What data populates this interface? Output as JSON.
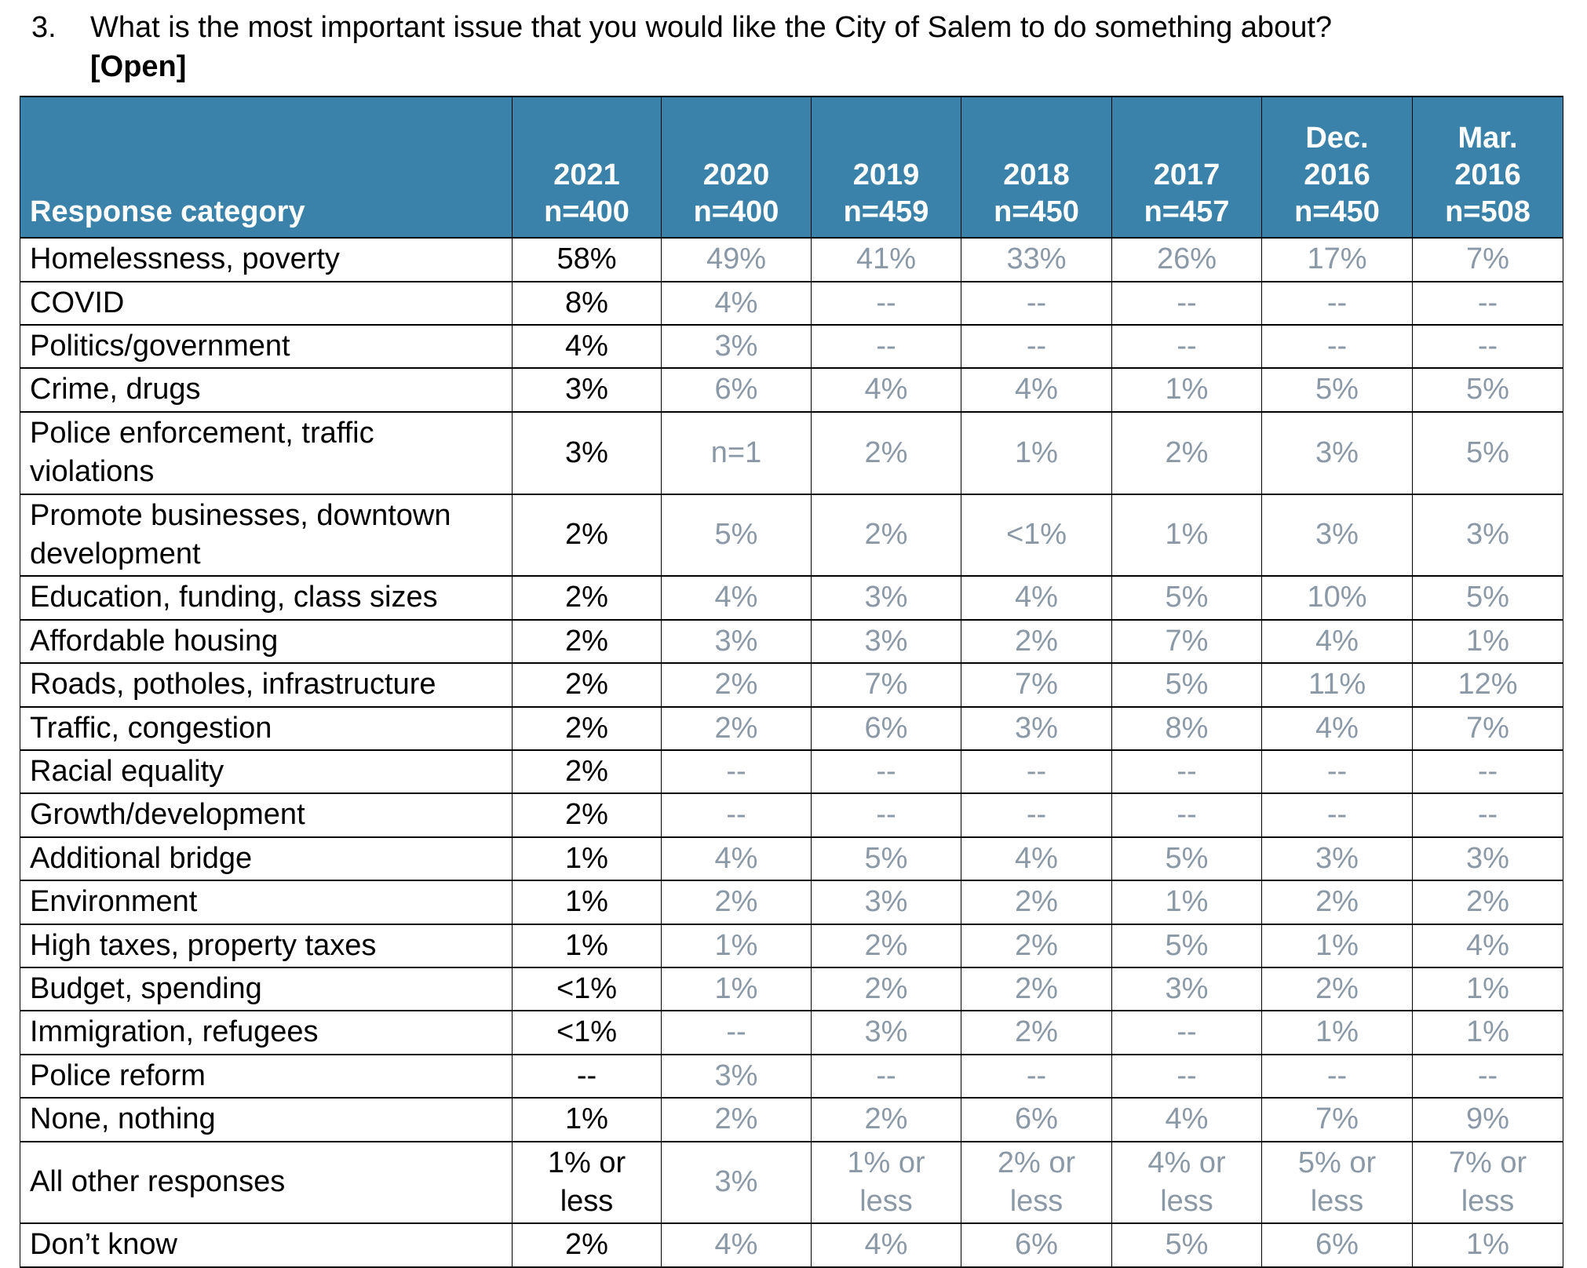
{
  "question": {
    "number": "3.",
    "text": "What is the most important issue that you would like the City of Salem to do something about?",
    "tag": "[Open]"
  },
  "colors": {
    "header_background": "#3a82a9",
    "header_text": "#ffffff",
    "current_year_text": "#000000",
    "past_year_text": "#8b99a6"
  },
  "table": {
    "category_header": "Response category",
    "columns": [
      {
        "key": "2021",
        "label": "2021\nn=400"
      },
      {
        "key": "2020",
        "label": "2020\nn=400"
      },
      {
        "key": "2019",
        "label": "2019\nn=459"
      },
      {
        "key": "2018",
        "label": "2018\nn=450"
      },
      {
        "key": "2017",
        "label": "2017\nn=457"
      },
      {
        "key": "dec-2016",
        "label": "Dec.\n2016\nn=450"
      },
      {
        "key": "mar-2016",
        "label": "Mar.\n2016\nn=508"
      }
    ],
    "rows": [
      {
        "category": "Homelessness, poverty",
        "values": [
          "58%",
          "49%",
          "41%",
          "33%",
          "26%",
          "17%",
          "7%"
        ]
      },
      {
        "category": "COVID",
        "values": [
          "8%",
          "4%",
          "--",
          "--",
          "--",
          "--",
          "--"
        ]
      },
      {
        "category": "Politics/government",
        "values": [
          "4%",
          "3%",
          "--",
          "--",
          "--",
          "--",
          "--"
        ]
      },
      {
        "category": "Crime, drugs",
        "values": [
          "3%",
          "6%",
          "4%",
          "4%",
          "1%",
          "5%",
          "5%"
        ]
      },
      {
        "category": "Police enforcement, traffic violations",
        "values": [
          "3%",
          "n=1",
          "2%",
          "1%",
          "2%",
          "3%",
          "5%"
        ]
      },
      {
        "category": "Promote businesses, downtown development",
        "values": [
          "2%",
          "5%",
          "2%",
          "<1%",
          "1%",
          "3%",
          "3%"
        ]
      },
      {
        "category": "Education, funding, class sizes",
        "values": [
          "2%",
          "4%",
          "3%",
          "4%",
          "5%",
          "10%",
          "5%"
        ]
      },
      {
        "category": "Affordable housing",
        "values": [
          "2%",
          "3%",
          "3%",
          "2%",
          "7%",
          "4%",
          "1%"
        ]
      },
      {
        "category": "Roads, potholes, infrastructure",
        "values": [
          "2%",
          "2%",
          "7%",
          "7%",
          "5%",
          "11%",
          "12%"
        ]
      },
      {
        "category": "Traffic, congestion",
        "values": [
          "2%",
          "2%",
          "6%",
          "3%",
          "8%",
          "4%",
          "7%"
        ]
      },
      {
        "category": "Racial equality",
        "values": [
          "2%",
          "--",
          "--",
          "--",
          "--",
          "--",
          "--"
        ]
      },
      {
        "category": "Growth/development",
        "values": [
          "2%",
          "--",
          "--",
          "--",
          "--",
          "--",
          "--"
        ]
      },
      {
        "category": "Additional bridge",
        "values": [
          "1%",
          "4%",
          "5%",
          "4%",
          "5%",
          "3%",
          "3%"
        ]
      },
      {
        "category": "Environment",
        "values": [
          "1%",
          "2%",
          "3%",
          "2%",
          "1%",
          "2%",
          "2%"
        ]
      },
      {
        "category": "High taxes, property taxes",
        "values": [
          "1%",
          "1%",
          "2%",
          "2%",
          "5%",
          "1%",
          "4%"
        ]
      },
      {
        "category": "Budget, spending",
        "values": [
          "<1%",
          "1%",
          "2%",
          "2%",
          "3%",
          "2%",
          "1%"
        ]
      },
      {
        "category": "Immigration, refugees",
        "values": [
          "<1%",
          "--",
          "3%",
          "2%",
          "--",
          "1%",
          "1%"
        ]
      },
      {
        "category": "Police reform",
        "values": [
          "--",
          "3%",
          "--",
          "--",
          "--",
          "--",
          "--"
        ]
      },
      {
        "category": "None, nothing",
        "values": [
          "1%",
          "2%",
          "2%",
          "6%",
          "4%",
          "7%",
          "9%"
        ]
      },
      {
        "category": "All other responses",
        "values": [
          "1% or\nless",
          "3%",
          "1% or\nless",
          "2% or\nless",
          "4% or\nless",
          "5% or\nless",
          "7% or\nless"
        ]
      },
      {
        "category": "Don’t know",
        "values": [
          "2%",
          "4%",
          "4%",
          "6%",
          "5%",
          "6%",
          "1%"
        ]
      }
    ]
  }
}
